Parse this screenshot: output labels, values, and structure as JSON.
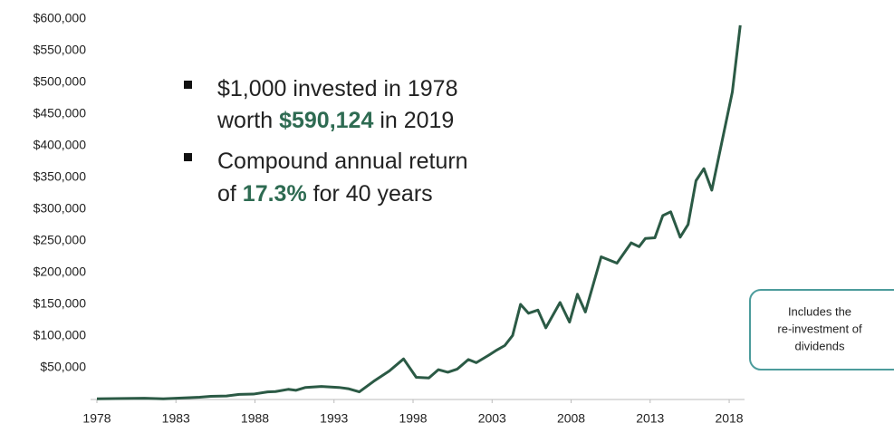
{
  "chart_data": {
    "type": "line",
    "x": [
      1978,
      1981,
      1982.2,
      1984.5,
      1985.2,
      1986.2,
      1987,
      1987.9,
      1988.8,
      1989.3,
      1990.1,
      1990.6,
      1991.2,
      1992.2,
      1993.3,
      1993.9,
      1994.6,
      1995.5,
      1996.5,
      1997.4,
      1998.2,
      1999,
      1999.6,
      2000.2,
      2000.8,
      2001.5,
      2002,
      2002.8,
      2003.3,
      2003.8,
      2004.3,
      2004.8,
      2005.3,
      2005.9,
      2006.4,
      2007.3,
      2007.9,
      2008.4,
      2008.9,
      2009.9,
      2010.4,
      2010.9,
      2011.8,
      2012.3,
      2012.7,
      2013.3,
      2013.8,
      2014.3,
      2014.9,
      2015.4,
      2015.9,
      2016.4,
      2016.9,
      2018.2,
      2018.7
    ],
    "series": [
      {
        "name": "Value of $1,000 invested",
        "color": "#2b5a45",
        "values": [
          1000,
          2000,
          1000,
          3500,
          5000,
          5500,
          8000,
          8500,
          12000,
          12500,
          16000,
          14500,
          19000,
          20500,
          19000,
          17000,
          12000,
          28500,
          45000,
          64000,
          35000,
          34000,
          47000,
          43000,
          48000,
          63000,
          58000,
          70000,
          78000,
          85000,
          101000,
          150000,
          136000,
          141000,
          113000,
          153000,
          122000,
          166000,
          138000,
          225000,
          220000,
          215000,
          247000,
          241000,
          254000,
          255000,
          290000,
          296000,
          256000,
          276000,
          345000,
          364000,
          330000,
          485000,
          590124
        ]
      }
    ],
    "xlim": [
      1978,
      2018.8
    ],
    "xticks": [
      1978,
      1983,
      1988,
      1993,
      1998,
      2003,
      2008,
      2013,
      2018
    ],
    "ylim": [
      0,
      600000
    ],
    "yticks": [
      {
        "value": 50000,
        "label": "$50,000"
      },
      {
        "value": 100000,
        "label": "$100,000"
      },
      {
        "value": 150000,
        "label": "$150,000"
      },
      {
        "value": 200000,
        "label": "$200,000"
      },
      {
        "value": 250000,
        "label": "$250,000"
      },
      {
        "value": 300000,
        "label": "$300,000"
      },
      {
        "value": 350000,
        "label": "$350,000"
      },
      {
        "value": 400000,
        "label": "$400,000"
      },
      {
        "value": 450000,
        "label": "$450,000"
      },
      {
        "value": 500000,
        "label": "$500,000"
      },
      {
        "value": 550000,
        "label": "$550,000"
      },
      {
        "value": 600000,
        "label": "$600,000"
      }
    ],
    "annotations": {
      "bullets": [
        [
          {
            "text": "$1,000 invested in 1978"
          }
        ],
        [
          {
            "text": "worth "
          },
          {
            "text": "$590,124",
            "bold": true
          },
          {
            "text": " in 2019"
          }
        ],
        [
          {
            "text": "Compound annual return"
          }
        ],
        [
          {
            "text": "of "
          },
          {
            "text": "17.3%",
            "bold": true
          },
          {
            "text": " for 40 years"
          }
        ]
      ],
      "highlight_color": "#2e6b52",
      "note": [
        "Includes the",
        "re-investment of",
        "dividends"
      ]
    }
  }
}
